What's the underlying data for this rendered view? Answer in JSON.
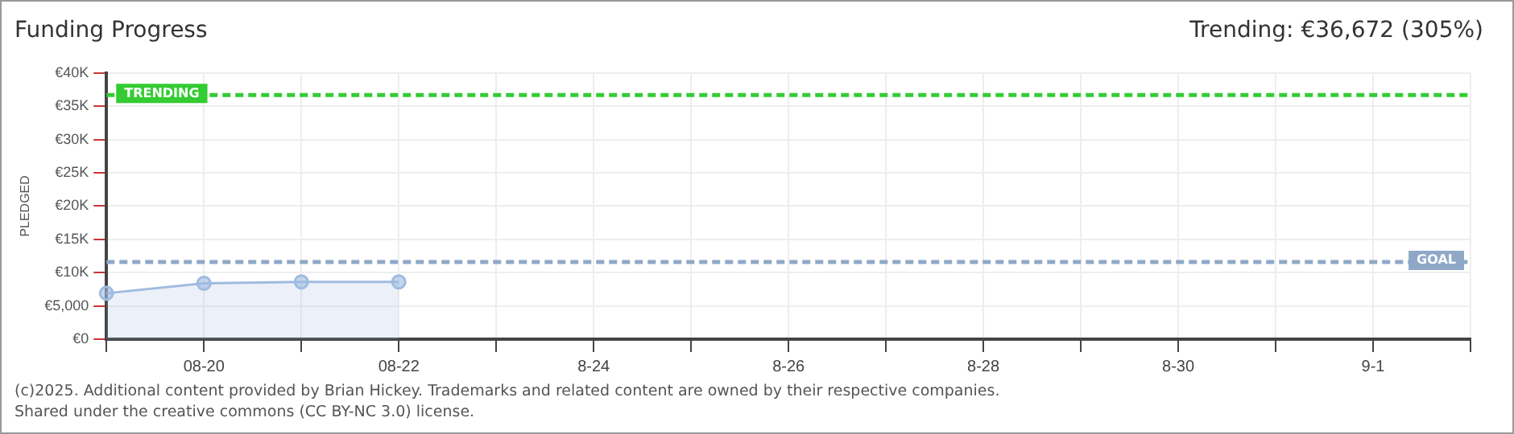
{
  "chart_data": {
    "type": "area",
    "title": "Funding Progress",
    "subtitle": "Trending: €36,672 (305%)",
    "ylabel": "PLEDGED",
    "categories": [
      null,
      "08-20",
      null,
      "08-22",
      null,
      "8-24",
      null,
      "8-26",
      null,
      "8-28",
      null,
      "8-30",
      null,
      "9-1",
      null
    ],
    "series": [
      {
        "color": "#9fbbe0",
        "values": [
          6900,
          8400,
          8600,
          8600,
          null,
          null,
          null,
          null,
          null,
          null,
          null,
          null,
          null,
          null,
          null
        ]
      }
    ],
    "ylim": [
      0,
      40000
    ],
    "yticks": [
      {
        "value": 0,
        "label": "€0"
      },
      {
        "value": 5000,
        "label": "€5,000"
      },
      {
        "value": 10000,
        "label": "€10K"
      },
      {
        "value": 15000,
        "label": "€15K"
      },
      {
        "value": 20000,
        "label": "€20K"
      },
      {
        "value": 25000,
        "label": "€25K"
      },
      {
        "value": 30000,
        "label": "€30K"
      },
      {
        "value": 35000,
        "label": "€35K"
      },
      {
        "value": 40000,
        "label": "€40K"
      }
    ],
    "ref_lines": [
      {
        "axis": "y",
        "value": 36672,
        "label": "TRENDING",
        "color": "#33cc33",
        "line_style": "dashed"
      },
      {
        "axis": "y",
        "value": 11600,
        "label": "GOAL",
        "color": "#8fa8c8",
        "line_style": "dashed"
      }
    ],
    "grid": true,
    "legend": false,
    "marker": "circle",
    "annotations": [
      "(c)2025. Additional content provided by Brian Hickey. Trademarks and related content are owned by their respective companies.",
      "Shared under the creative commons (CC BY-NC 3.0) license."
    ]
  }
}
